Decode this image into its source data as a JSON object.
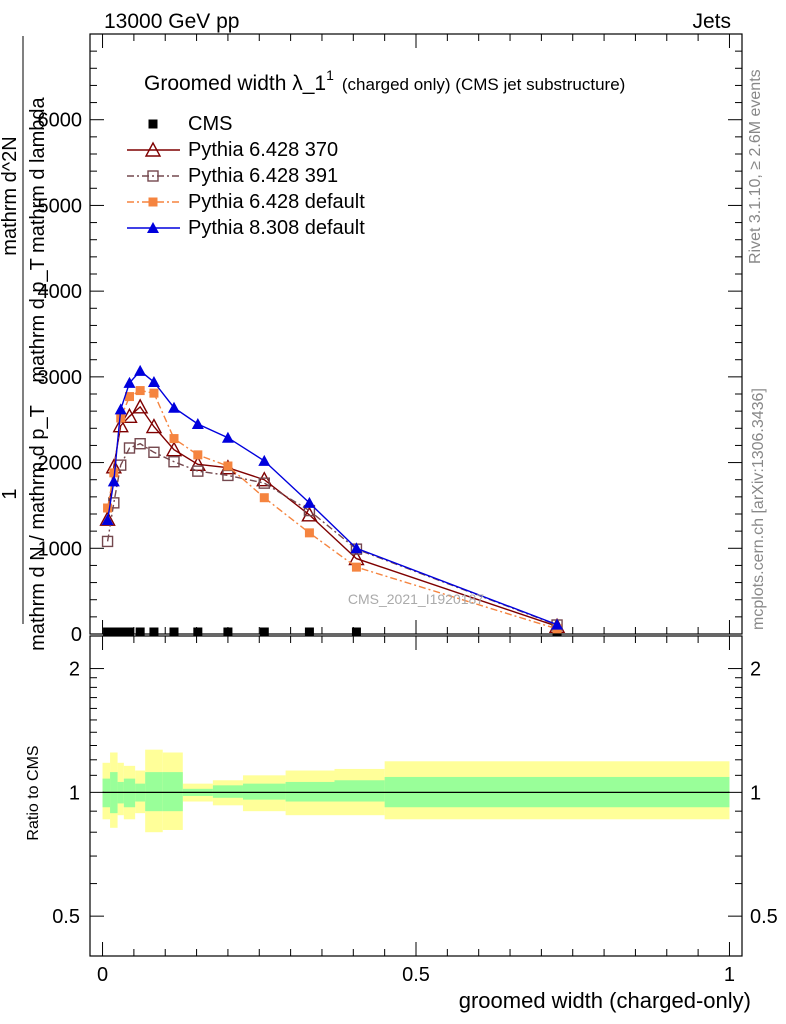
{
  "header": {
    "energy": "13000 GeV pp",
    "process": "Jets",
    "title_main": "Groomed width",
    "title_lambda": "λ_1",
    "title_sup": "1",
    "title_sub": "(charged only) (CMS jet substructure)"
  },
  "side": {
    "rivet": "Rivet 3.1.10, ≥ 2.6M events",
    "mcplots": "mcplots.cern.ch [arXiv:1306.3436]"
  },
  "watermark": "CMS_2021_I1920187",
  "axes": {
    "xlabel": "groomed width (charged-only)",
    "ylabel_top_num": "1",
    "ylabel_top_den": "mathrm d N / mathrm d p_T",
    "ylabel_top_frac_num": "mathrm d^2N",
    "ylabel_top_frac_den": "mathrm d p_T mathrm d lambda",
    "ylabel_ratio": "Ratio to CMS",
    "x_ticks": [
      "0",
      "0.5",
      "1"
    ],
    "y_ticks_main": [
      "0",
      "1000",
      "2000",
      "3000",
      "4000",
      "5000",
      "6000"
    ],
    "y_ticks_ratio": [
      "0.5",
      "1",
      "2"
    ]
  },
  "legend": [
    {
      "name": "CMS",
      "color": "#000000",
      "marker": "square-filled",
      "line": "none"
    },
    {
      "name": "Pythia 6.428 370",
      "color": "#7f0000",
      "marker": "triangle-open",
      "line": "solid"
    },
    {
      "name": "Pythia 6.428 391",
      "color": "#74484e",
      "marker": "square-open",
      "line": "dashdot"
    },
    {
      "name": "Pythia 6.428 default",
      "color": "#f5843f",
      "marker": "square-filled",
      "line": "dashdot"
    },
    {
      "name": "Pythia 8.308 default",
      "color": "#0000dd",
      "marker": "triangle-filled",
      "line": "solid"
    }
  ],
  "chart_data": {
    "type": "line",
    "x": [
      0.008,
      0.018,
      0.029,
      0.043,
      0.06,
      0.082,
      0.114,
      0.152,
      0.2,
      0.258,
      0.33,
      0.405,
      0.725
    ],
    "xlim": [
      -0.02,
      1.02
    ],
    "ylim_main": [
      0,
      7000
    ],
    "ylim_ratio_log": [
      0.4,
      2.4
    ],
    "series": [
      {
        "name": "CMS",
        "values": [
          0,
          0,
          0,
          0,
          0,
          0,
          0,
          0,
          0,
          0,
          0,
          0,
          0
        ]
      },
      {
        "name": "Pythia 6.428 370",
        "values": [
          1340,
          1950,
          2430,
          2540,
          2650,
          2420,
          2150,
          1980,
          1940,
          1800,
          1390,
          880,
          90
        ]
      },
      {
        "name": "Pythia 6.428 391",
        "values": [
          1080,
          1530,
          1970,
          2170,
          2220,
          2120,
          2010,
          1900,
          1850,
          1760,
          1440,
          990,
          105
        ]
      },
      {
        "name": "Pythia 6.428 default",
        "values": [
          1470,
          1880,
          2520,
          2770,
          2840,
          2810,
          2280,
          2090,
          1960,
          1590,
          1180,
          780,
          60
        ]
      },
      {
        "name": "Pythia 8.308 default",
        "values": [
          1330,
          1780,
          2620,
          2930,
          3070,
          2940,
          2640,
          2450,
          2290,
          2020,
          1530,
          1000,
          110
        ]
      }
    ],
    "ratio_band_edges": [
      0,
      0.012,
      0.024,
      0.034,
      0.052,
      0.068,
      0.096,
      0.128,
      0.176,
      0.224,
      0.292,
      0.37,
      0.45,
      1.0
    ],
    "ratio_band_inner": [
      [
        0.92,
        1.08
      ],
      [
        0.89,
        1.12
      ],
      [
        0.94,
        1.06
      ],
      [
        0.92,
        1.08
      ],
      [
        0.95,
        1.05
      ],
      [
        0.9,
        1.12
      ],
      [
        0.9,
        1.12
      ],
      [
        0.98,
        1.02
      ],
      [
        0.97,
        1.04
      ],
      [
        0.96,
        1.05
      ],
      [
        0.95,
        1.06
      ],
      [
        0.95,
        1.07
      ],
      [
        0.92,
        1.09
      ]
    ],
    "ratio_band_outer": [
      [
        0.86,
        1.18
      ],
      [
        0.82,
        1.25
      ],
      [
        0.88,
        1.18
      ],
      [
        0.86,
        1.16
      ],
      [
        0.89,
        1.13
      ],
      [
        0.8,
        1.27
      ],
      [
        0.81,
        1.25
      ],
      [
        0.95,
        1.05
      ],
      [
        0.93,
        1.07
      ],
      [
        0.9,
        1.1
      ],
      [
        0.88,
        1.13
      ],
      [
        0.88,
        1.14
      ],
      [
        0.86,
        1.19
      ]
    ]
  }
}
